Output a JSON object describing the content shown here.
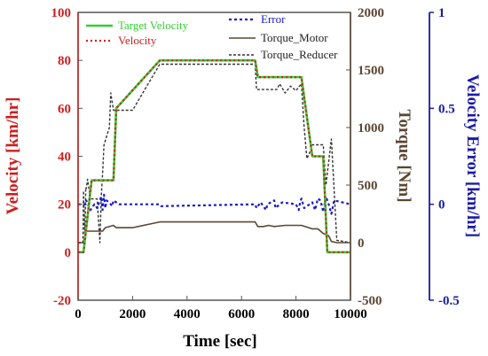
{
  "chart_data": {
    "type": "line",
    "xlabel": "Time [sec]",
    "ylabel_left": "Velocity [km/hr]",
    "ylabel_right1": "Torque [Nm]",
    "ylabel_right2": "Velocity Error [km/hr]",
    "xlim": [
      0,
      10000
    ],
    "ylim_left": [
      -20,
      100
    ],
    "ylim_right1": [
      -500,
      2000
    ],
    "ylim_right2": [
      -0.5,
      1
    ],
    "x_ticks": [
      "0",
      "2000",
      "4000",
      "6000",
      "8000",
      "10000"
    ],
    "y_left_ticks": [
      "-20",
      "0",
      "20",
      "40",
      "60",
      "80",
      "100"
    ],
    "y_right1_ticks": [
      "-500",
      "0",
      "500",
      "1000",
      "1500",
      "2000"
    ],
    "y_right2_ticks": [
      "-0.5",
      "0",
      "0.5",
      "1"
    ],
    "grid": false,
    "legend_left_placement": "top-left",
    "legend_right_placement": "top-right",
    "colors": {
      "target_velocity": "#33cc33",
      "velocity": "#cc2222",
      "error": "#1a1acc",
      "torque_motor": "#5b4633",
      "torque_reducer": "#333333",
      "axis_left": "#cc1f1f",
      "axis_right1": "#5b4633",
      "axis_right2": "#1a1aa6"
    },
    "series": [
      {
        "name": "Target Velocity",
        "axis": "left",
        "style": "solid",
        "x": [
          0,
          200,
          500,
          1300,
          1400,
          3000,
          6500,
          6600,
          8200,
          8600,
          9000,
          9150,
          9500,
          10000
        ],
        "y": [
          0,
          0,
          30,
          30,
          60,
          80,
          80,
          73,
          73,
          40,
          40,
          0,
          0,
          0
        ]
      },
      {
        "name": "Velocity",
        "axis": "left",
        "style": "dotted",
        "x": [
          0,
          200,
          500,
          1300,
          1400,
          3000,
          6500,
          6600,
          8200,
          8600,
          9000,
          9150,
          9500,
          10000
        ],
        "y": [
          0,
          0,
          30,
          30,
          60,
          80,
          80,
          73,
          73,
          40,
          40,
          0,
          0,
          0
        ]
      },
      {
        "name": "Error",
        "axis": "right2",
        "style": "dotted",
        "x": [
          0,
          280,
          300,
          450,
          600,
          700,
          750,
          850,
          900,
          950,
          1000,
          1050,
          1200,
          1250,
          1300,
          1500,
          3000,
          3050,
          6500,
          6550,
          6700,
          6900,
          6950,
          7200,
          7250,
          7400,
          7500,
          8000,
          8100,
          8150,
          8200,
          8300,
          8600,
          8700,
          8800,
          8900,
          9000,
          9100,
          9200,
          9300,
          9400,
          10000
        ],
        "y": [
          0,
          0,
          0.02,
          -0.03,
          0,
          -0.02,
          0,
          0.04,
          -0.03,
          0.05,
          -0.02,
          0.02,
          0,
          -0.01,
          0.02,
          0,
          0,
          -0.01,
          0,
          -0.02,
          0.01,
          -0.03,
          0,
          0.02,
          -0.02,
          0,
          0.01,
          0,
          -0.03,
          0.01,
          0.03,
          -0.02,
          0.01,
          -0.03,
          0.03,
          0.02,
          -0.04,
          0.04,
          0,
          -0.05,
          0.02,
          0
        ]
      },
      {
        "name": "Torque_Motor",
        "axis": "right1",
        "style": "solid",
        "x": [
          0,
          200,
          300,
          500,
          900,
          1000,
          1300,
          1400,
          2000,
          3000,
          6500,
          6600,
          6800,
          7000,
          7200,
          7600,
          8200,
          8600,
          8800,
          9000,
          9200,
          9300,
          9500,
          10000
        ],
        "y": [
          0,
          0,
          100,
          100,
          100,
          130,
          150,
          130,
          130,
          180,
          180,
          140,
          140,
          150,
          140,
          150,
          150,
          120,
          120,
          80,
          60,
          10,
          0,
          0
        ]
      },
      {
        "name": "Torque_Reducer",
        "axis": "right1",
        "style": "dashed",
        "x": [
          0,
          180,
          200,
          250,
          280,
          300,
          350,
          450,
          700,
          800,
          850,
          900,
          950,
          1150,
          1200,
          1300,
          1400,
          2000,
          3000,
          6500,
          6550,
          7300,
          7400,
          7600,
          7800,
          8000,
          8200,
          8300,
          8400,
          8500,
          8600,
          9000,
          9100,
          9200,
          9300,
          9500,
          10000
        ],
        "y": [
          0,
          0,
          450,
          0,
          480,
          470,
          550,
          380,
          380,
          0,
          400,
          600,
          850,
          1000,
          1300,
          1150,
          1150,
          1150,
          1550,
          1550,
          1330,
          1330,
          1380,
          1300,
          1360,
          1320,
          1380,
          1000,
          730,
          780,
          850,
          850,
          500,
          700,
          900,
          20,
          0
        ]
      }
    ]
  }
}
